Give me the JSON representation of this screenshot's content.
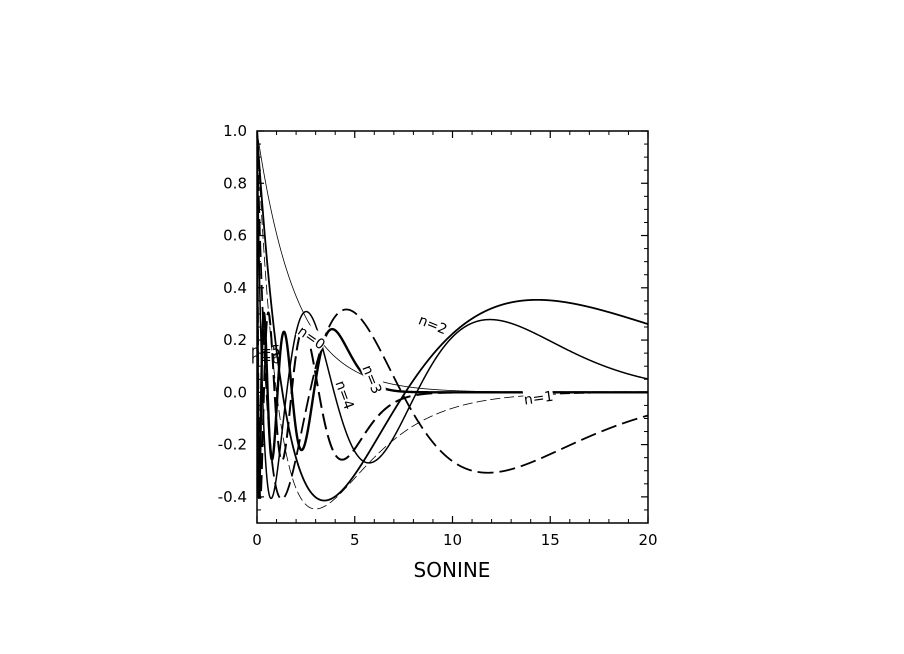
{
  "chart_data": {
    "type": "line",
    "xlabel": "SONINE",
    "ylabel": "",
    "title": "",
    "xlim": [
      0,
      20
    ],
    "ylim": [
      -0.5,
      1.0
    ],
    "xticks": [
      0,
      5,
      10,
      15,
      20
    ],
    "xtick_labels": [
      "0",
      "5",
      "10",
      "15",
      "20"
    ],
    "yticks": [
      -0.4,
      -0.2,
      0.0,
      0.2,
      0.4,
      0.6,
      0.8,
      1.0
    ],
    "ytick_labels": [
      "-0.4",
      "-0.2",
      "0.0",
      "0.2",
      "0.4",
      "0.6",
      "0.8",
      "1.0"
    ],
    "grid": false,
    "series": [
      {
        "name": "n=0",
        "style": "solid",
        "stroke_width": 0.8,
        "n": 0,
        "alpha": 1.0,
        "label_x": 2.8,
        "label_y": 0.21,
        "label_angle": 35
      },
      {
        "name": "n=1",
        "style": "dashed",
        "stroke_width": 0.8,
        "n": 1,
        "alpha": 1.0,
        "label_x": 14.4,
        "label_y": -0.02,
        "label_angle": -8
      },
      {
        "name": "n=2",
        "style": "solid",
        "stroke_width": 1.8,
        "n": 2,
        "alpha": 0.45,
        "label_x": 9.0,
        "label_y": 0.26,
        "label_angle": 22
      },
      {
        "name": "n=3",
        "style": "dashed",
        "stroke_width": 1.8,
        "n": 3,
        "alpha": 0.85,
        "label_x": 5.9,
        "label_y": 0.05,
        "label_angle": 68
      },
      {
        "name": "n=4",
        "style": "solid",
        "stroke_width": 1.5,
        "n": 4,
        "alpha": 1.15,
        "label_x": 4.5,
        "label_y": -0.01,
        "label_angle": 70
      },
      {
        "name": "n=5",
        "style": "dashed",
        "stroke_width": 2.0,
        "n": 5,
        "alpha": 4.0,
        "label_x": 0.45,
        "label_y": 0.16,
        "label_angle": 0
      },
      {
        "name": "n=6",
        "style": "solid",
        "stroke_width": 2.4,
        "n": 6,
        "alpha": 5.5,
        "label_x": 0.45,
        "label_y": 0.13,
        "label_angle": 0
      }
    ]
  }
}
